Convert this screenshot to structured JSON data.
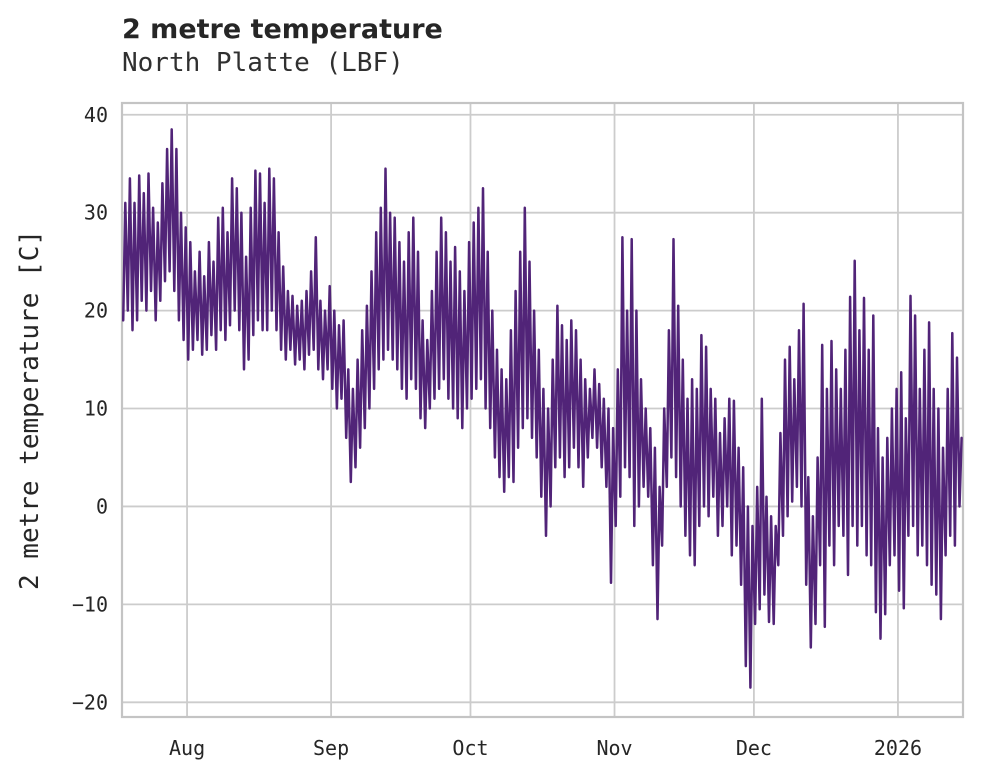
{
  "header": {
    "title": "2 metre temperature",
    "subtitle": "North Platte (LBF)"
  },
  "chart_data": {
    "type": "line",
    "title": "2 metre temperature",
    "subtitle": "North Platte (LBF)",
    "ylabel": "2 metre temperature [C]",
    "xlabel": "",
    "grid": true,
    "legend": "none",
    "ylim": [
      -21.5,
      41.2
    ],
    "yticks": [
      40,
      30,
      20,
      10,
      0,
      -10,
      -20
    ],
    "ytick_labels": [
      "40",
      "30",
      "20",
      "10",
      "0",
      "−10",
      "−20"
    ],
    "xtick_labels": [
      "Aug",
      "Sep",
      "Oct",
      "Nov",
      "Dec",
      "2026"
    ],
    "xtick_day_index": [
      14,
      45,
      75,
      106,
      136,
      167
    ],
    "x_total_days": 181,
    "line_color": "#512478",
    "grid_color": "#cccccc",
    "border_color": "#c4c4c4",
    "series": [
      {
        "name": "2 metre temperature",
        "unit": "C",
        "description": "daily [min,max] pairs, Jul 18 2025 through Jan 14 2026",
        "daily_min_max": [
          [
            19,
            31
          ],
          [
            20,
            33.5
          ],
          [
            18,
            31
          ],
          [
            19,
            33.8
          ],
          [
            21,
            32
          ],
          [
            20,
            34
          ],
          [
            22,
            30.5
          ],
          [
            19,
            29
          ],
          [
            21,
            33
          ],
          [
            23,
            36.5
          ],
          [
            24,
            38.5
          ],
          [
            22,
            36.5
          ],
          [
            19,
            30
          ],
          [
            17,
            28.5
          ],
          [
            15,
            27
          ],
          [
            16,
            24
          ],
          [
            17,
            26
          ],
          [
            15.5,
            23.5
          ],
          [
            16,
            27
          ],
          [
            17.5,
            25
          ],
          [
            16,
            29.5
          ],
          [
            18,
            30.5
          ],
          [
            17,
            28
          ],
          [
            18.5,
            33.5
          ],
          [
            20,
            32.5
          ],
          [
            18,
            30
          ],
          [
            14,
            25.5
          ],
          [
            15,
            30.5
          ],
          [
            17.5,
            34.3
          ],
          [
            19,
            34
          ],
          [
            18,
            31
          ],
          [
            18,
            34.5
          ],
          [
            20,
            33.5
          ],
          [
            18,
            28
          ],
          [
            16,
            24.5
          ],
          [
            15,
            22
          ],
          [
            16,
            21.5
          ],
          [
            14.5,
            20.5
          ],
          [
            15,
            21
          ],
          [
            14,
            22
          ],
          [
            15.5,
            24
          ],
          [
            16,
            27.5
          ],
          [
            14,
            21
          ],
          [
            13,
            20
          ],
          [
            14,
            22.5
          ],
          [
            12,
            20
          ],
          [
            10,
            18.5
          ],
          [
            11,
            19
          ],
          [
            7,
            14
          ],
          [
            2.5,
            12
          ],
          [
            4,
            15
          ],
          [
            6,
            18
          ],
          [
            8,
            20.5
          ],
          [
            10,
            24
          ],
          [
            12,
            28
          ],
          [
            14,
            30.5
          ],
          [
            15,
            34.5
          ],
          [
            16,
            30
          ],
          [
            15,
            29.5
          ],
          [
            14,
            27
          ],
          [
            12,
            25
          ],
          [
            11,
            28
          ],
          [
            13,
            29.5
          ],
          [
            12,
            26
          ],
          [
            9,
            19
          ],
          [
            8,
            17
          ],
          [
            10,
            22
          ],
          [
            11,
            26
          ],
          [
            12,
            29.5
          ],
          [
            13,
            28
          ],
          [
            11,
            25
          ],
          [
            10,
            26.5
          ],
          [
            9,
            24
          ],
          [
            8,
            22
          ],
          [
            10,
            27
          ],
          [
            11,
            29
          ],
          [
            12,
            30.5
          ],
          [
            13,
            32.5
          ],
          [
            10,
            26
          ],
          [
            8,
            20
          ],
          [
            5,
            16
          ],
          [
            3,
            14
          ],
          [
            1.5,
            13
          ],
          [
            3,
            18
          ],
          [
            2.5,
            22
          ],
          [
            6,
            26
          ],
          [
            8,
            30.5
          ],
          [
            9,
            25
          ],
          [
            7,
            20
          ],
          [
            5,
            16
          ],
          [
            1,
            12
          ],
          [
            -3,
            10
          ],
          [
            0,
            15
          ],
          [
            4,
            20.5
          ],
          [
            5,
            18.5
          ],
          [
            3,
            17
          ],
          [
            4,
            19
          ],
          [
            6,
            18
          ],
          [
            4,
            15
          ],
          [
            2,
            13
          ],
          [
            5,
            12
          ],
          [
            7,
            14
          ],
          [
            6,
            12.5
          ],
          [
            4,
            11
          ],
          [
            2,
            10
          ],
          [
            -7.8,
            8
          ],
          [
            -2,
            14
          ],
          [
            1,
            27.5
          ],
          [
            4,
            20
          ],
          [
            3,
            27.3
          ],
          [
            -2,
            20
          ],
          [
            0,
            13
          ],
          [
            2,
            10
          ],
          [
            1,
            8
          ],
          [
            -6,
            6
          ],
          [
            -11.5,
            2
          ],
          [
            -4,
            10
          ],
          [
            2,
            18
          ],
          [
            5,
            27.3
          ],
          [
            3,
            20.5
          ],
          [
            0,
            15
          ],
          [
            -3,
            11
          ],
          [
            -5,
            13
          ],
          [
            -6,
            12
          ],
          [
            -2,
            17.5
          ],
          [
            0,
            16.3
          ],
          [
            -1,
            12
          ],
          [
            1,
            11
          ],
          [
            -3,
            7.5
          ],
          [
            -2,
            9
          ],
          [
            0,
            11
          ],
          [
            -5,
            10.8
          ],
          [
            -4,
            6
          ],
          [
            -8,
            4
          ],
          [
            -16.3,
            0
          ],
          [
            -18.5,
            -2
          ],
          [
            -12,
            2
          ],
          [
            -10.5,
            11
          ],
          [
            -9,
            1
          ],
          [
            -11.8,
            -1
          ],
          [
            -12,
            -2
          ],
          [
            -6,
            7.5
          ],
          [
            -3,
            15
          ],
          [
            -1,
            16.3
          ],
          [
            0.5,
            13
          ],
          [
            2,
            18
          ],
          [
            0,
            20.7
          ],
          [
            -8,
            3
          ],
          [
            -14.4,
            -1
          ],
          [
            -12,
            5
          ],
          [
            -6,
            16.5
          ],
          [
            -12.3,
            12
          ],
          [
            -4,
            16.9
          ],
          [
            -6,
            14
          ],
          [
            -2,
            12
          ],
          [
            -3,
            16
          ],
          [
            -7,
            21.4
          ],
          [
            -2,
            25.1
          ],
          [
            -4,
            18
          ],
          [
            -2,
            21.3
          ],
          [
            -5,
            16
          ],
          [
            -6,
            19.5
          ],
          [
            -10.8,
            8
          ],
          [
            -13.5,
            5
          ],
          [
            -11,
            7
          ],
          [
            -6,
            10
          ],
          [
            -5,
            12
          ],
          [
            -8.6,
            13.7
          ],
          [
            -10.4,
            9
          ],
          [
            -3,
            21.5
          ],
          [
            -2,
            19.5
          ],
          [
            -5,
            12
          ],
          [
            -4,
            16
          ],
          [
            -6,
            18.8
          ],
          [
            -8,
            12
          ],
          [
            -9,
            10
          ],
          [
            -11.5,
            6
          ],
          [
            -5,
            12
          ],
          [
            -3,
            17.7
          ],
          [
            -4,
            15.2
          ],
          [
            0,
            7
          ]
        ]
      }
    ]
  }
}
